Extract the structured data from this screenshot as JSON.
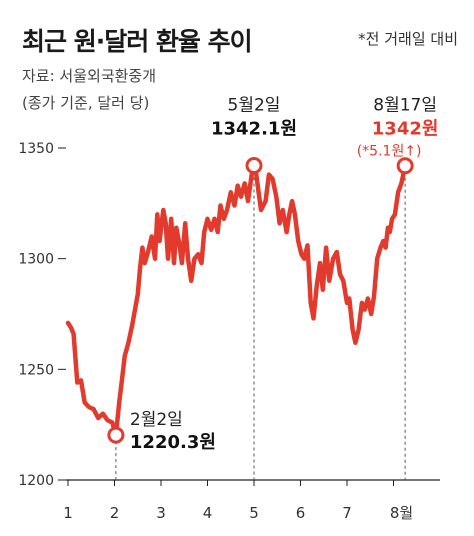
{
  "header": {
    "title": "최근 원·달러 환율 추이",
    "note": "*전 거래일 대비",
    "source_line1": "자료: 서울외국환중개",
    "source_line2": "(종가 기준, 달러 당)"
  },
  "colors": {
    "line": "#e23b2e",
    "axis": "#222222",
    "dash": "#555555"
  },
  "chart_data": {
    "type": "line",
    "title": "최근 원·달러 환율 추이",
    "xlabel": "",
    "ylabel": "",
    "ylim": [
      1200,
      1350
    ],
    "yticks": [
      1200,
      1250,
      1300,
      1350
    ],
    "xticks": [
      "1",
      "2",
      "3",
      "4",
      "5",
      "6",
      "7",
      "8월"
    ],
    "xlim": [
      1,
      9
    ],
    "grid": false,
    "series": [
      {
        "values": [
          [
            1.0,
            1271
          ],
          [
            1.06,
            1269
          ],
          [
            1.12,
            1266
          ],
          [
            1.2,
            1244
          ],
          [
            1.28,
            1245
          ],
          [
            1.36,
            1235
          ],
          [
            1.45,
            1233
          ],
          [
            1.55,
            1232
          ],
          [
            1.65,
            1228
          ],
          [
            1.75,
            1230
          ],
          [
            1.85,
            1227
          ],
          [
            1.95,
            1226
          ],
          [
            2.03,
            1220.3
          ],
          [
            2.1,
            1235
          ],
          [
            2.16,
            1245
          ],
          [
            2.22,
            1256
          ],
          [
            2.3,
            1262
          ],
          [
            2.38,
            1270
          ],
          [
            2.45,
            1278
          ],
          [
            2.5,
            1284
          ],
          [
            2.55,
            1296
          ],
          [
            2.6,
            1305
          ],
          [
            2.65,
            1298
          ],
          [
            2.72,
            1303
          ],
          [
            2.8,
            1310
          ],
          [
            2.87,
            1300
          ],
          [
            2.92,
            1320
          ],
          [
            2.97,
            1308
          ],
          [
            3.05,
            1322
          ],
          [
            3.1,
            1316
          ],
          [
            3.15,
            1300
          ],
          [
            3.22,
            1318
          ],
          [
            3.28,
            1298
          ],
          [
            3.33,
            1314
          ],
          [
            3.4,
            1306
          ],
          [
            3.45,
            1298
          ],
          [
            3.52,
            1316
          ],
          [
            3.58,
            1300
          ],
          [
            3.65,
            1290
          ],
          [
            3.72,
            1300
          ],
          [
            3.8,
            1302
          ],
          [
            3.87,
            1298
          ],
          [
            3.93,
            1312
          ],
          [
            4.0,
            1318
          ],
          [
            4.08,
            1313
          ],
          [
            4.15,
            1318
          ],
          [
            4.22,
            1312
          ],
          [
            4.28,
            1324
          ],
          [
            4.35,
            1318
          ],
          [
            4.42,
            1322
          ],
          [
            4.5,
            1330
          ],
          [
            4.58,
            1324
          ],
          [
            4.65,
            1333
          ],
          [
            4.72,
            1328
          ],
          [
            4.8,
            1334
          ],
          [
            4.87,
            1326
          ],
          [
            4.95,
            1338
          ],
          [
            5.0,
            1342.1
          ],
          [
            5.05,
            1338
          ],
          [
            5.1,
            1330
          ],
          [
            5.15,
            1322
          ],
          [
            5.2,
            1324
          ],
          [
            5.25,
            1326
          ],
          [
            5.32,
            1338
          ],
          [
            5.4,
            1336
          ],
          [
            5.48,
            1328
          ],
          [
            5.55,
            1316
          ],
          [
            5.62,
            1322
          ],
          [
            5.7,
            1312
          ],
          [
            5.76,
            1320
          ],
          [
            5.82,
            1326
          ],
          [
            5.88,
            1320
          ],
          [
            5.95,
            1308
          ],
          [
            6.02,
            1302
          ],
          [
            6.08,
            1300
          ],
          [
            6.15,
            1306
          ],
          [
            6.22,
            1280
          ],
          [
            6.28,
            1273
          ],
          [
            6.35,
            1288
          ],
          [
            6.42,
            1298
          ],
          [
            6.48,
            1286
          ],
          [
            6.55,
            1305
          ],
          [
            6.62,
            1290
          ],
          [
            6.7,
            1300
          ],
          [
            6.78,
            1303
          ],
          [
            6.85,
            1293
          ],
          [
            6.92,
            1290
          ],
          [
            7.0,
            1280
          ],
          [
            7.05,
            1282
          ],
          [
            7.12,
            1268
          ],
          [
            7.18,
            1262
          ],
          [
            7.25,
            1268
          ],
          [
            7.32,
            1280
          ],
          [
            7.38,
            1277
          ],
          [
            7.45,
            1282
          ],
          [
            7.52,
            1275
          ],
          [
            7.58,
            1283
          ],
          [
            7.65,
            1300
          ],
          [
            7.72,
            1305
          ],
          [
            7.78,
            1308
          ],
          [
            7.83,
            1305
          ],
          [
            7.88,
            1314
          ],
          [
            7.92,
            1312
          ],
          [
            7.97,
            1318
          ],
          [
            8.03,
            1320
          ],
          [
            8.1,
            1330
          ],
          [
            8.17,
            1334
          ],
          [
            8.25,
            1342
          ]
        ]
      }
    ],
    "annotations": [
      {
        "id": "low",
        "x": 2.03,
        "y": 1220.3,
        "date": "2월2일",
        "value": "1220.3원"
      },
      {
        "id": "may",
        "x": 5.0,
        "y": 1342.1,
        "date": "5월2일",
        "value": "1342.1원"
      },
      {
        "id": "last",
        "x": 8.25,
        "y": 1342,
        "date": "8월17일",
        "value": "1342원",
        "change": "(*5.1원↑)"
      }
    ]
  }
}
